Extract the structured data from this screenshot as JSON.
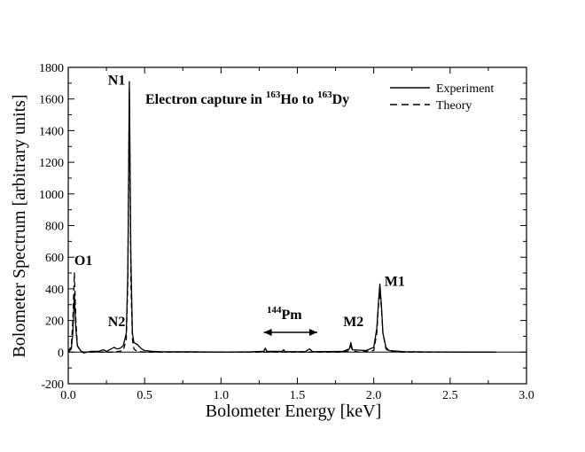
{
  "chart_data": {
    "type": "line",
    "title": "Electron capture in {163}Ho to {163}Dy",
    "title_parts": [
      "Electron capture in ",
      "163",
      "Ho to ",
      "163",
      "Dy"
    ],
    "xlabel": "Bolometer Energy [keV]",
    "ylabel": "Bolometer Spectrum [arbitrary units]",
    "xlim": [
      0,
      3.0
    ],
    "ylim": [
      -200,
      1800
    ],
    "x_ticks": [
      "0.0",
      "0.5",
      "1.0",
      "1.5",
      "2.0",
      "2.5",
      "3.0"
    ],
    "y_ticks": [
      "-200",
      "0",
      "200",
      "400",
      "600",
      "800",
      "1000",
      "1200",
      "1400",
      "1600",
      "1800"
    ],
    "grid": false,
    "legend_position": "top-right",
    "series": [
      {
        "name": "Experiment",
        "style": "solid",
        "x": [
          0.0,
          0.02,
          0.03,
          0.04,
          0.05,
          0.06,
          0.08,
          0.1,
          0.15,
          0.2,
          0.23,
          0.25,
          0.3,
          0.32,
          0.34,
          0.36,
          0.38,
          0.39,
          0.4,
          0.41,
          0.42,
          0.43,
          0.45,
          0.48,
          0.5,
          0.55,
          0.6,
          0.7,
          0.8,
          1.0,
          1.2,
          1.28,
          1.29,
          1.3,
          1.4,
          1.41,
          1.42,
          1.55,
          1.58,
          1.6,
          1.8,
          1.84,
          1.85,
          1.86,
          1.95,
          2.0,
          2.02,
          2.03,
          2.04,
          2.05,
          2.06,
          2.08,
          2.1,
          2.2,
          2.4,
          2.6,
          2.8
        ],
        "y": [
          0,
          20,
          120,
          370,
          140,
          40,
          10,
          -5,
          5,
          5,
          15,
          5,
          30,
          20,
          25,
          40,
          120,
          500,
          1710,
          600,
          120,
          60,
          50,
          20,
          10,
          5,
          3,
          2,
          2,
          0,
          2,
          5,
          25,
          5,
          5,
          15,
          3,
          3,
          20,
          3,
          5,
          20,
          60,
          15,
          10,
          30,
          150,
          300,
          430,
          300,
          120,
          30,
          10,
          3,
          1,
          0,
          0
        ]
      },
      {
        "name": "Theory",
        "style": "dashed",
        "x": [
          0.0,
          0.02,
          0.03,
          0.04,
          0.05,
          0.06,
          0.08,
          0.1,
          0.3,
          0.36,
          0.38,
          0.39,
          0.4,
          0.41,
          0.42,
          0.43,
          0.45,
          0.5,
          0.6,
          1.0,
          1.8,
          1.84,
          1.85,
          1.86,
          1.9,
          2.0,
          2.02,
          2.03,
          2.04,
          2.05,
          2.06,
          2.08,
          2.1,
          2.2,
          2.8
        ],
        "y": [
          0,
          40,
          200,
          500,
          200,
          40,
          5,
          0,
          0,
          10,
          80,
          450,
          1650,
          450,
          80,
          20,
          5,
          0,
          0,
          0,
          0,
          10,
          40,
          10,
          0,
          10,
          120,
          280,
          380,
          280,
          120,
          20,
          5,
          0,
          0
        ]
      }
    ],
    "annotations": [
      {
        "id": "O1",
        "text": "O1",
        "x": 0.04,
        "y": 550
      },
      {
        "id": "N1",
        "text": "N1",
        "x": 0.26,
        "y": 1690
      },
      {
        "id": "N2",
        "text": "N2",
        "x": 0.26,
        "y": 165
      },
      {
        "id": "M2",
        "text": "M2",
        "x": 1.8,
        "y": 165
      },
      {
        "id": "M1",
        "text": "M1",
        "x": 2.07,
        "y": 420
      },
      {
        "id": "Pm",
        "sup": "144",
        "text": "Pm",
        "x": 1.3,
        "y": 210,
        "arrow_from": 1.28,
        "arrow_to": 1.63,
        "arrow_y": 125
      }
    ]
  }
}
